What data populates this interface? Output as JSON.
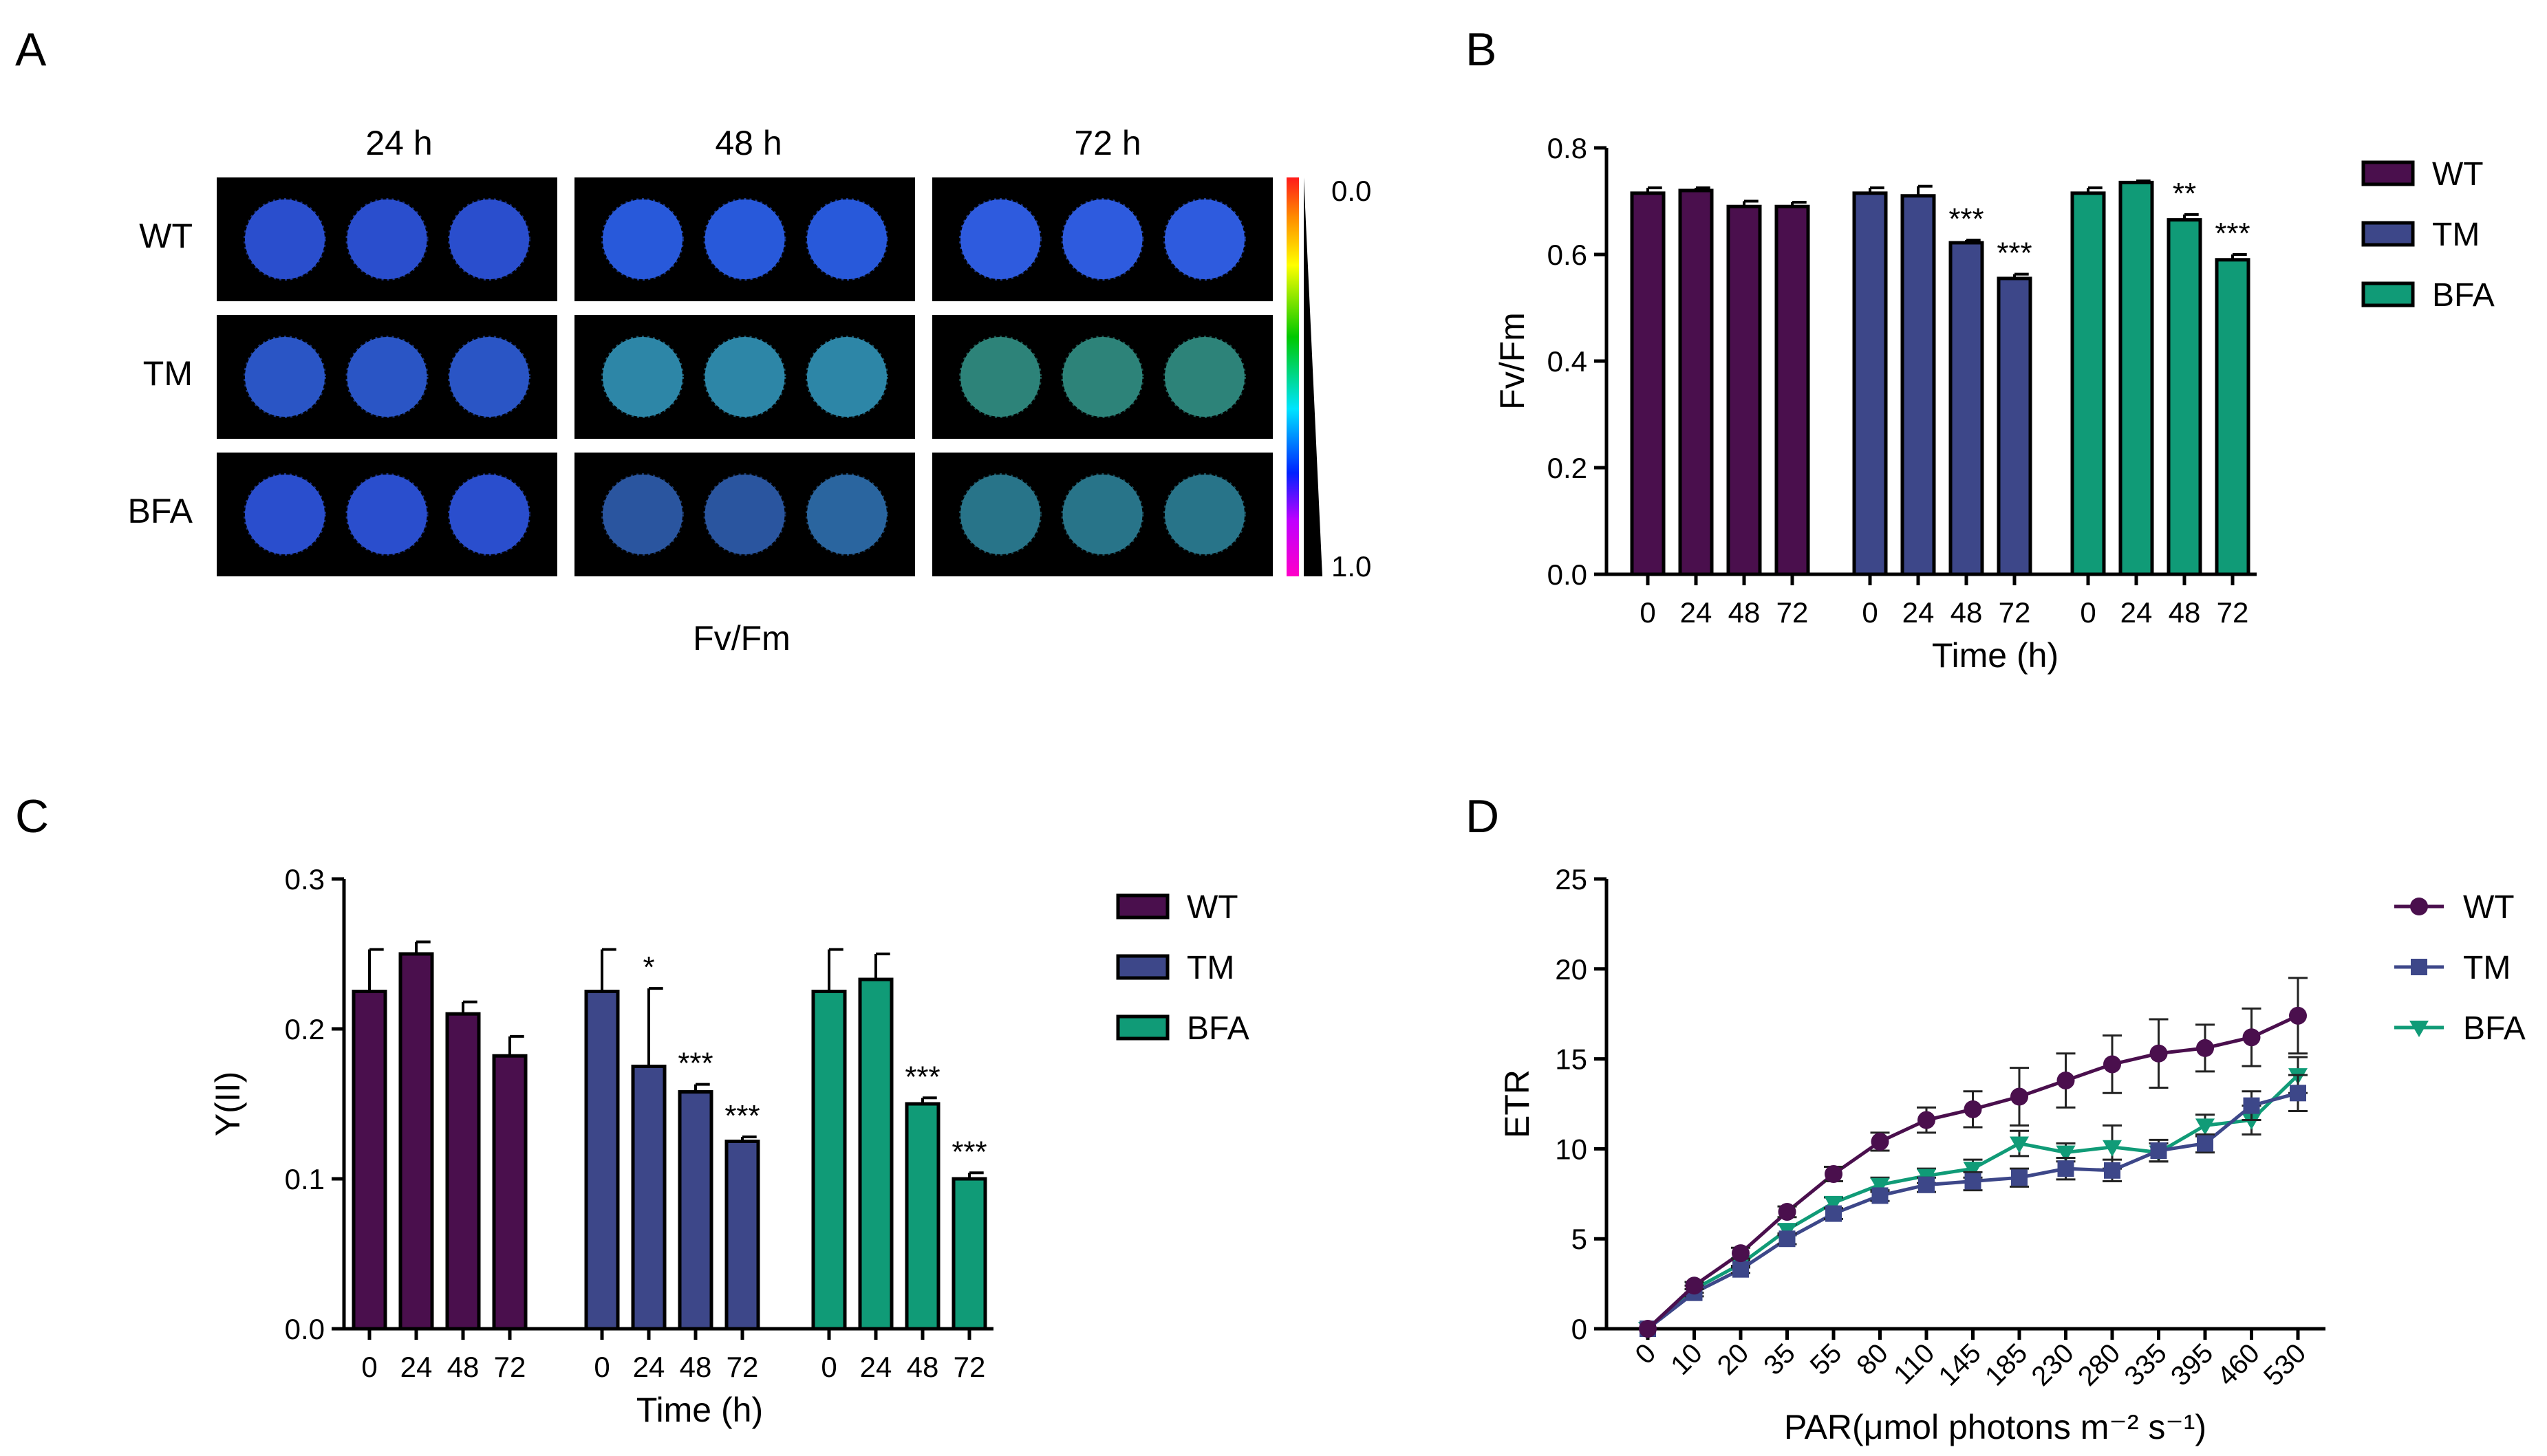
{
  "colors": {
    "WT": "#4a0f4d",
    "TM": "#3d4789",
    "BFA": "#109b77",
    "axis": "#000000"
  },
  "panels": {
    "A": {
      "letter": "A",
      "columns": [
        "24 h",
        "48 h",
        "72 h"
      ],
      "rows": [
        "WT",
        "TM",
        "BFA"
      ],
      "colorbar_top": "0.0",
      "colorbar_bottom": "1.0",
      "caption": "Fv/Fm",
      "well_colors": [
        [
          "#2c52d8",
          "#2c52d8",
          "#2c52d8",
          "#2a5ee6",
          "#2a5ee6",
          "#2a5ee6",
          "#3060ea",
          "#3060ea",
          "#3060ea"
        ],
        [
          "#2c5ad0",
          "#2c5ad0",
          "#2c5ad0",
          "#2f8db0",
          "#2f8db0",
          "#2f8db0",
          "#2f8a80",
          "#2f8a80",
          "#2f8a80"
        ],
        [
          "#2c52d8",
          "#2c52d8",
          "#2c52d8",
          "#2c5aa8",
          "#2c5aa8",
          "#2c6aa8",
          "#2a7a90",
          "#2a7a90",
          "#2a7a90"
        ]
      ]
    },
    "B": {
      "letter": "B"
    },
    "C": {
      "letter": "C"
    },
    "D": {
      "letter": "D"
    }
  },
  "chart_data": [
    {
      "id": "B",
      "type": "bar",
      "ylabel": "Fv/Fm",
      "xlabel": "Time (h)",
      "ylim": [
        0,
        0.8
      ],
      "yticks": [
        "0.0",
        "0.2",
        "0.4",
        "0.6",
        "0.8"
      ],
      "categories": [
        "0",
        "24",
        "48",
        "72"
      ],
      "series": [
        {
          "name": "WT",
          "values": [
            0.715,
            0.72,
            0.69,
            0.69
          ],
          "errors": [
            0.01,
            0.005,
            0.01,
            0.008
          ],
          "stars": [
            "",
            "",
            "",
            ""
          ]
        },
        {
          "name": "TM",
          "values": [
            0.715,
            0.71,
            0.622,
            0.555
          ],
          "errors": [
            0.01,
            0.018,
            0.005,
            0.008
          ],
          "stars": [
            "",
            "",
            "***",
            "***"
          ]
        },
        {
          "name": "BFA",
          "values": [
            0.715,
            0.735,
            0.665,
            0.59
          ],
          "errors": [
            0.01,
            0.003,
            0.01,
            0.01
          ],
          "stars": [
            "",
            "",
            "**",
            "***"
          ]
        }
      ],
      "legend": [
        "WT",
        "TM",
        "BFA"
      ]
    },
    {
      "id": "C",
      "type": "bar",
      "ylabel": "Y(II)",
      "xlabel": "Time (h)",
      "ylim": [
        0,
        0.3
      ],
      "yticks": [
        "0.0",
        "0.1",
        "0.2",
        "0.3"
      ],
      "categories": [
        "0",
        "24",
        "48",
        "72"
      ],
      "series": [
        {
          "name": "WT",
          "values": [
            0.225,
            0.25,
            0.21,
            0.182
          ],
          "errors": [
            0.028,
            0.008,
            0.008,
            0.013
          ],
          "stars": [
            "",
            "",
            "",
            ""
          ]
        },
        {
          "name": "TM",
          "values": [
            0.225,
            0.175,
            0.158,
            0.125
          ],
          "errors": [
            0.028,
            0.052,
            0.005,
            0.003
          ],
          "stars": [
            "",
            "*",
            "***",
            "***"
          ]
        },
        {
          "name": "BFA",
          "values": [
            0.225,
            0.233,
            0.15,
            0.1
          ],
          "errors": [
            0.028,
            0.017,
            0.004,
            0.004
          ],
          "stars": [
            "",
            "",
            "***",
            "***"
          ]
        }
      ],
      "legend": [
        "WT",
        "TM",
        "BFA"
      ]
    },
    {
      "id": "D",
      "type": "line",
      "ylabel": "ETR",
      "xlabel": "PAR(μmol photons m⁻² s⁻¹)",
      "ylim": [
        0,
        25
      ],
      "yticks": [
        "0",
        "5",
        "10",
        "15",
        "20",
        "25"
      ],
      "categories": [
        "0",
        "10",
        "20",
        "35",
        "55",
        "80",
        "110",
        "145",
        "185",
        "230",
        "280",
        "335",
        "395",
        "460",
        "530"
      ],
      "series": [
        {
          "name": "WT",
          "marker": "circle",
          "values": [
            0,
            2.4,
            4.2,
            6.5,
            8.6,
            10.4,
            11.6,
            12.2,
            12.9,
            13.8,
            14.7,
            15.3,
            15.6,
            16.2,
            17.4
          ],
          "errors": [
            0,
            0.2,
            0.3,
            0.3,
            0.4,
            0.5,
            0.7,
            1.0,
            1.6,
            1.5,
            1.6,
            1.9,
            1.3,
            1.6,
            2.1
          ]
        },
        {
          "name": "TM",
          "marker": "square",
          "values": [
            0,
            2.0,
            3.3,
            5.0,
            6.4,
            7.4,
            8.0,
            8.2,
            8.4,
            8.9,
            8.8,
            9.9,
            10.3,
            12.4,
            13.1
          ],
          "errors": [
            0,
            0.2,
            0.2,
            0.3,
            0.3,
            0.3,
            0.4,
            0.5,
            0.5,
            0.6,
            0.6,
            0.6,
            0.5,
            0.8,
            1.0
          ]
        },
        {
          "name": "BFA",
          "marker": "triangle-down",
          "values": [
            0,
            2.2,
            3.6,
            5.5,
            7.0,
            8.0,
            8.5,
            8.9,
            10.3,
            9.8,
            10.1,
            9.8,
            11.3,
            11.6,
            14.1
          ],
          "errors": [
            0,
            0.2,
            0.2,
            0.3,
            0.3,
            0.4,
            0.4,
            0.5,
            0.7,
            0.5,
            1.2,
            0.5,
            0.6,
            0.8,
            1.0
          ]
        }
      ],
      "legend": [
        "WT",
        "TM",
        "BFA"
      ]
    }
  ]
}
